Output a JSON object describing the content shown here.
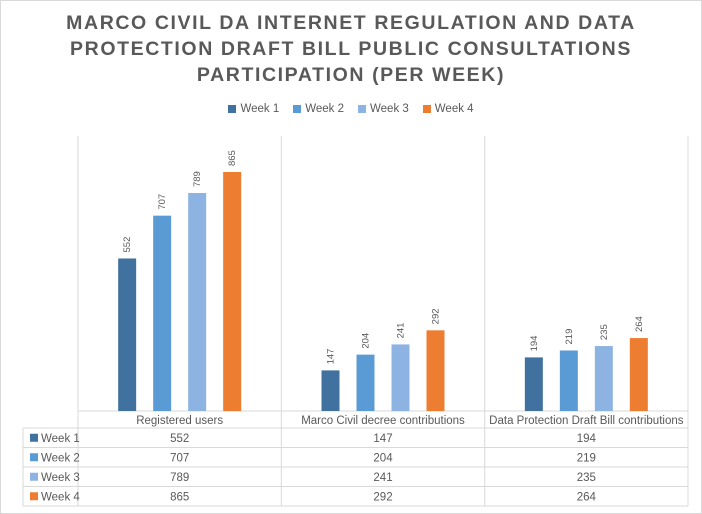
{
  "chart_data": {
    "type": "bar",
    "title_lines": [
      "MARCO CIVIL DA INTERNET REGULATION AND DATA",
      "PROTECTION DRAFT BILL PUBLIC CONSULTATIONS",
      "PARTICIPATION (PER WEEK)"
    ],
    "categories": [
      "Registered users",
      "Marco Civil decree contributions",
      "Data Protection Draft Bill contributions"
    ],
    "series": [
      {
        "name": "Week 1",
        "values": [
          552,
          147,
          194
        ],
        "color": "#41729f"
      },
      {
        "name": "Week 2",
        "values": [
          707,
          204,
          219
        ],
        "color": "#5b9bd5"
      },
      {
        "name": "Week 3",
        "values": [
          789,
          241,
          235
        ],
        "color": "#8db3e2"
      },
      {
        "name": "Week 4",
        "values": [
          865,
          292,
          264
        ],
        "color": "#ed7d31"
      }
    ],
    "ylim": [
      0,
      865
    ],
    "legend_position": "top",
    "data_table": true,
    "grid": false
  }
}
